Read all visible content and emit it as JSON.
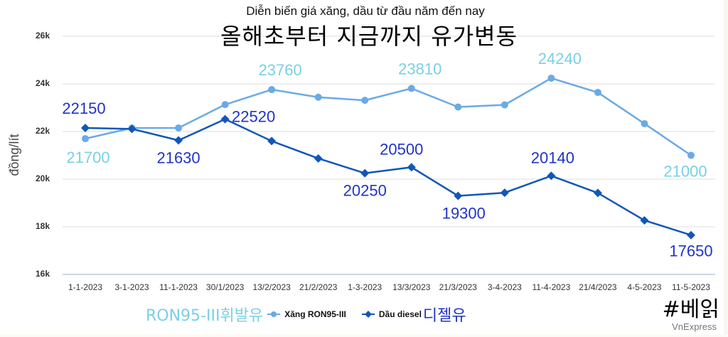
{
  "header": {
    "title_vn": "Diễn biến giá xăng, dầu từ đầu năm đến nay",
    "title_ko": "올해초부터 지금까지 유가변동"
  },
  "axes": {
    "ylabel": "đồng/lít",
    "yticks": [
      "26k",
      "24k",
      "22k",
      "20k",
      "18k",
      "16k"
    ],
    "xticks": [
      "1-1-2023",
      "3-1-2023",
      "11-1-2023",
      "30/1/2023",
      "13/2/2023",
      "21/2/2023",
      "1-3-2023",
      "13/3/2023",
      "21/3/2023",
      "3-4-2023",
      "11-4-2023",
      "21/4/2023",
      "4-5-2023",
      "11-5-2023"
    ]
  },
  "legend": {
    "ko_light": "RON95-III휘발유",
    "series_1_label": "Xăng RON95-III",
    "series_2_label": "Dầu diesel",
    "ko_dark": "디젤유"
  },
  "footer": {
    "hashtag": "#베읽",
    "source": "VnExpress"
  },
  "colors": {
    "series_1_line": "#6aaae6",
    "series_2_line": "#1157b8",
    "series_1_label": "#79d0e6",
    "series_2_label": "#2033c8",
    "grid": "#dddddd",
    "xaxis": "#ccd6eb"
  },
  "chart_data": {
    "type": "line",
    "title": "Diễn biến giá xăng, dầu từ đầu năm đến nay",
    "subtitle": "올해초부터 지금까지 유가변동",
    "xlabel": "",
    "ylabel": "đồng/lít",
    "ylim": [
      16000,
      26000
    ],
    "yticks": [
      16000,
      18000,
      20000,
      22000,
      24000,
      26000
    ],
    "grid": true,
    "legend_position": "bottom",
    "categories": [
      "1-1-2023",
      "3-1-2023",
      "11-1-2023",
      "30/1/2023",
      "13/2/2023",
      "21/2/2023",
      "1-3-2023",
      "13/3/2023",
      "21/3/2023",
      "3-4-2023",
      "11-4-2023",
      "21/4/2023",
      "4-5-2023",
      "11-5-2023"
    ],
    "series": [
      {
        "name": "Xăng RON95-III",
        "marker": "circle",
        "values": [
          21700,
          22150,
          22150,
          23130,
          23760,
          23440,
          23310,
          23810,
          23030,
          23120,
          24240,
          23640,
          22330,
          21000
        ],
        "labeled_points": {
          "0": "21700",
          "4": "23760",
          "7": "23810",
          "10": "24240",
          "13": "21000"
        }
      },
      {
        "name": "Dầu diesel",
        "marker": "diamond",
        "values": [
          22150,
          22110,
          21630,
          22520,
          21600,
          20870,
          20250,
          20500,
          19300,
          19430,
          20140,
          19420,
          18270,
          17650
        ],
        "labeled_points": {
          "0": "22150",
          "2": "21630",
          "3": "22520",
          "6": "20250",
          "7": "20500",
          "8": "19300",
          "10": "20140",
          "13": "17650"
        }
      }
    ],
    "source": "VnExpress"
  }
}
